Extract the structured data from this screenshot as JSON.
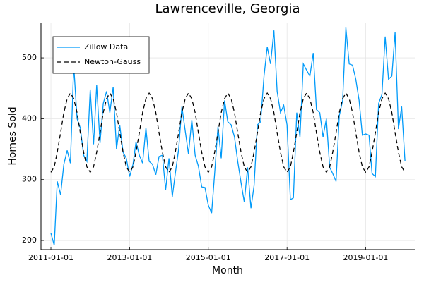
{
  "chart_data": {
    "type": "line",
    "title": "Lawrenceville, Georgia",
    "xlabel": "Month",
    "ylabel": "Homes Sold",
    "x": [
      "2011-01-01",
      "2011-02-01",
      "2011-03-01",
      "2011-04-01",
      "2011-05-01",
      "2011-06-01",
      "2011-07-01",
      "2011-08-01",
      "2011-09-01",
      "2011-10-01",
      "2011-11-01",
      "2011-12-01",
      "2012-01-01",
      "2012-02-01",
      "2012-03-01",
      "2012-04-01",
      "2012-05-01",
      "2012-06-01",
      "2012-07-01",
      "2012-08-01",
      "2012-09-01",
      "2012-10-01",
      "2012-11-01",
      "2012-12-01",
      "2013-01-01",
      "2013-02-01",
      "2013-03-01",
      "2013-04-01",
      "2013-05-01",
      "2013-06-01",
      "2013-07-01",
      "2013-08-01",
      "2013-09-01",
      "2013-10-01",
      "2013-11-01",
      "2013-12-01",
      "2014-01-01",
      "2014-02-01",
      "2014-03-01",
      "2014-04-01",
      "2014-05-01",
      "2014-06-01",
      "2014-07-01",
      "2014-08-01",
      "2014-09-01",
      "2014-10-01",
      "2014-11-01",
      "2014-12-01",
      "2015-01-01",
      "2015-02-01",
      "2015-03-01",
      "2015-04-01",
      "2015-05-01",
      "2015-06-01",
      "2015-07-01",
      "2015-08-01",
      "2015-09-01",
      "2015-10-01",
      "2015-11-01",
      "2015-12-01",
      "2016-01-01",
      "2016-02-01",
      "2016-03-01",
      "2016-04-01",
      "2016-05-01",
      "2016-06-01",
      "2016-07-01",
      "2016-08-01",
      "2016-09-01",
      "2016-10-01",
      "2016-11-01",
      "2016-12-01",
      "2017-01-01",
      "2017-02-01",
      "2017-03-01",
      "2017-04-01",
      "2017-05-01",
      "2017-06-01",
      "2017-07-01",
      "2017-08-01",
      "2017-09-01",
      "2017-10-01",
      "2017-11-01",
      "2017-12-01",
      "2018-01-01",
      "2018-02-01",
      "2018-03-01",
      "2018-04-01",
      "2018-05-01",
      "2018-06-01",
      "2018-07-01",
      "2018-08-01",
      "2018-09-01",
      "2018-10-01",
      "2018-11-01",
      "2018-12-01",
      "2019-01-01",
      "2019-02-01",
      "2019-03-01",
      "2019-04-01",
      "2019-05-01",
      "2019-06-01",
      "2019-07-01",
      "2019-08-01",
      "2019-09-01",
      "2019-10-01",
      "2019-11-01",
      "2019-12-01",
      "2020-01-01"
    ],
    "series": [
      {
        "name": "Zillow Data",
        "color": "#009af9",
        "line_style": "solid",
        "values": [
          212,
          192,
          297,
          275,
          325,
          348,
          327,
          488,
          400,
          385,
          340,
          330,
          448,
          358,
          455,
          360,
          425,
          445,
          410,
          452,
          350,
          390,
          345,
          335,
          305,
          325,
          362,
          340,
          327,
          385,
          330,
          325,
          308,
          338,
          340,
          283,
          335,
          272,
          310,
          350,
          420,
          380,
          342,
          398,
          340,
          322,
          288,
          287,
          258,
          245,
          310,
          387,
          335,
          430,
          395,
          390,
          370,
          330,
          295,
          263,
          320,
          253,
          290,
          390,
          395,
          470,
          518,
          490,
          545,
          445,
          410,
          422,
          390,
          267,
          270,
          410,
          370,
          490,
          480,
          470,
          508,
          415,
          410,
          370,
          400,
          320,
          310,
          297,
          405,
          430,
          550,
          490,
          488,
          465,
          430,
          373,
          375,
          373,
          310,
          305,
          425,
          440,
          535,
          465,
          470,
          542,
          383,
          420,
          330
        ]
      },
      {
        "name": "Newton-Gauss",
        "color": "#000000",
        "line_style": "dashed",
        "values": [
          312,
          321,
          345,
          377,
          410,
          433,
          442,
          433,
          410,
          377,
          345,
          321,
          312,
          321,
          345,
          377,
          410,
          433,
          442,
          433,
          410,
          377,
          345,
          321,
          312,
          321,
          345,
          377,
          410,
          433,
          442,
          433,
          410,
          377,
          345,
          321,
          312,
          321,
          345,
          377,
          410,
          433,
          442,
          433,
          410,
          377,
          345,
          321,
          312,
          321,
          345,
          377,
          410,
          433,
          442,
          433,
          410,
          377,
          345,
          321,
          312,
          321,
          345,
          377,
          410,
          433,
          442,
          433,
          410,
          377,
          345,
          321,
          312,
          321,
          345,
          377,
          410,
          433,
          442,
          433,
          410,
          377,
          345,
          321,
          312,
          321,
          345,
          377,
          410,
          433,
          442,
          433,
          410,
          377,
          345,
          321,
          312,
          321,
          345,
          377,
          410,
          433,
          442,
          433,
          410,
          377,
          345,
          321,
          312
        ]
      }
    ],
    "xlim": [
      "2010-10-01",
      "2020-04-01"
    ],
    "xticks": [
      "2011-01-01",
      "2013-01-01",
      "2015-01-01",
      "2017-01-01",
      "2019-01-01"
    ],
    "ylim": [
      185,
      558
    ],
    "yticks": [
      200,
      300,
      400,
      500
    ],
    "grid": true,
    "legend": "top-left"
  }
}
